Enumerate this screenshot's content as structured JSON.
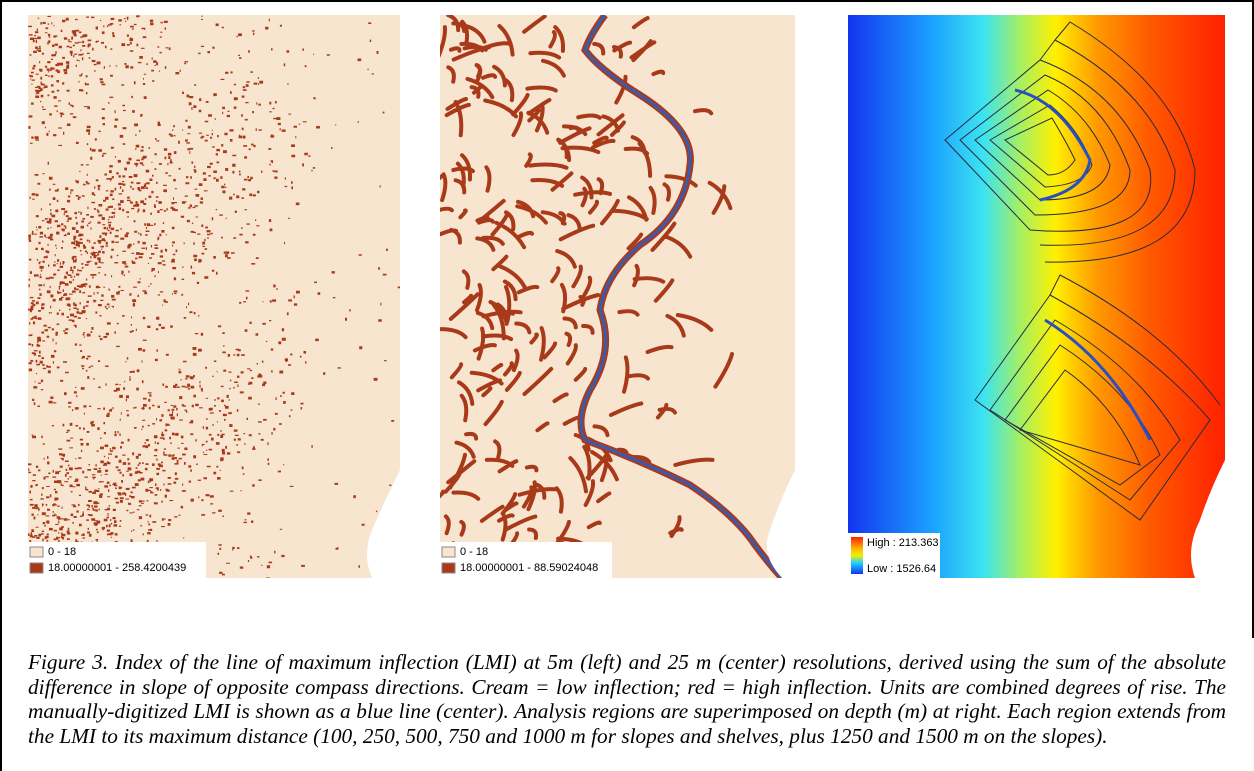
{
  "panels": [
    {
      "legend": [
        "0 - 18",
        "18.00000001 - 258.4200439"
      ]
    },
    {
      "legend": [
        "0 - 18",
        "18.00000001 - 88.59024048"
      ]
    },
    {
      "legend": [
        "High : 213.363",
        "Low : 1526.64"
      ]
    }
  ],
  "caption": "Figure 3. Index of the line of maximum inflection (LMI) at 5m (left) and 25 m (center) resolutions, derived using the sum of the absolute difference in slope of opposite compass directions. Cream = low inflection; red = high inflection. Units are combined degrees of rise. The manually-digitized LMI is shown as a blue line (center). Analysis regions are superimposed on depth (m) at right. Each region extends from the LMI to its maximum distance (100, 250, 500, 750 and 1000 m for slopes and shelves, plus 1250 and 1500 m on the slopes)."
}
